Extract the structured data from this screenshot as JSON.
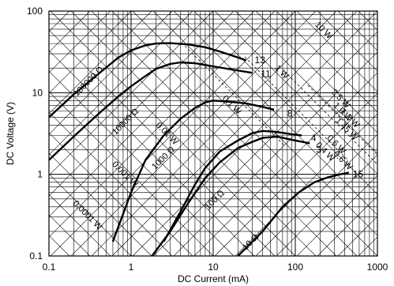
{
  "chart_data": {
    "type": "line",
    "x_scale": "log",
    "y_scale": "log",
    "xlim": [
      0.1,
      1000
    ],
    "ylim": [
      0.1,
      100
    ],
    "xlabel": "DC Current (mA)",
    "ylabel": "DC Voltage (V)",
    "x_ticks": [
      {
        "value": 0.1,
        "label": "0.1"
      },
      {
        "value": 1,
        "label": "1"
      },
      {
        "value": 10,
        "label": "10"
      },
      {
        "value": 100,
        "label": "100"
      },
      {
        "value": 1000,
        "label": "1000"
      }
    ],
    "y_ticks": [
      {
        "value": 0.1,
        "label": "0.1"
      },
      {
        "value": 1,
        "label": "1"
      },
      {
        "value": 10,
        "label": "10"
      },
      {
        "value": 100,
        "label": "100"
      }
    ],
    "grid": true,
    "series": [
      {
        "label": "13",
        "label_at": [
          32,
          25
        ],
        "points": [
          [
            0.1,
            5.0
          ],
          [
            0.2,
            9.5
          ],
          [
            0.4,
            17
          ],
          [
            0.7,
            27
          ],
          [
            1.0,
            33
          ],
          [
            1.5,
            38
          ],
          [
            2.0,
            40
          ],
          [
            3.0,
            40.5
          ],
          [
            5.0,
            39
          ],
          [
            8.0,
            36
          ],
          [
            12,
            32
          ],
          [
            18,
            28
          ],
          [
            25,
            25
          ]
        ]
      },
      {
        "label": "11",
        "label_at": [
          38,
          17
        ],
        "points": [
          [
            0.1,
            1.5
          ],
          [
            0.2,
            2.9
          ],
          [
            0.4,
            5.5
          ],
          [
            0.7,
            9
          ],
          [
            1.0,
            12
          ],
          [
            1.5,
            16
          ],
          [
            2.0,
            19.5
          ],
          [
            3.0,
            22.5
          ],
          [
            4.0,
            23.5
          ],
          [
            6.0,
            23
          ],
          [
            10,
            21
          ],
          [
            18,
            19
          ],
          [
            30,
            17.5
          ]
        ]
      },
      {
        "label": "8",
        "label_at": [
          80,
          5.6
        ],
        "points": [
          [
            0.6,
            0.15
          ],
          [
            1.0,
            0.6
          ],
          [
            1.5,
            1.5
          ],
          [
            2.5,
            3.0
          ],
          [
            4.0,
            4.8
          ],
          [
            6.0,
            6.5
          ],
          [
            8.0,
            7.6
          ],
          [
            10,
            8.0
          ],
          [
            15,
            7.8
          ],
          [
            25,
            7.4
          ],
          [
            40,
            6.7
          ],
          [
            55,
            6.2
          ]
        ]
      },
      {
        "label": "4",
        "label_at": [
          155,
          2.8
        ],
        "points": [
          [
            2.5,
            0.15
          ],
          [
            4.0,
            0.35
          ],
          [
            6.0,
            0.75
          ],
          [
            8.0,
            1.2
          ],
          [
            12,
            1.9
          ],
          [
            20,
            2.6
          ],
          [
            30,
            3.2
          ],
          [
            40,
            3.4
          ],
          [
            60,
            3.3
          ],
          [
            90,
            3.1
          ],
          [
            120,
            3.0
          ]
        ]
      },
      {
        "label": "3",
        "label_at": [
          180,
          2.0
        ],
        "points": [
          [
            1.8,
            0.1
          ],
          [
            3.0,
            0.2
          ],
          [
            5.0,
            0.45
          ],
          [
            8.0,
            0.9
          ],
          [
            12,
            1.4
          ],
          [
            20,
            2.1
          ],
          [
            30,
            2.5
          ],
          [
            40,
            2.8
          ],
          [
            60,
            2.9
          ],
          [
            100,
            2.6
          ],
          [
            150,
            2.4
          ]
        ]
      },
      {
        "label": "15",
        "label_at": [
          500,
          1.0
        ],
        "points": [
          [
            20,
            0.1
          ],
          [
            40,
            0.2
          ],
          [
            70,
            0.4
          ],
          [
            110,
            0.6
          ],
          [
            170,
            0.8
          ],
          [
            250,
            0.92
          ],
          [
            350,
            1.0
          ],
          [
            450,
            1.05
          ]
        ]
      }
    ],
    "annotations": [
      {
        "text": "100000 Ω",
        "x": 0.32,
        "y": 13,
        "angle": -45
      },
      {
        "text": "10000 Ω",
        "x": 0.9,
        "y": 4.2,
        "angle": -45
      },
      {
        "text": "1000 Ω",
        "x": 2.6,
        "y": 1.5,
        "angle": -45
      },
      {
        "text": "100 Ω",
        "x": 11,
        "y": 0.46,
        "angle": -45
      },
      {
        "text": "10 Ω",
        "x": 30,
        "y": 0.14,
        "angle": -45
      },
      {
        "text": "0.0001 W",
        "x": 0.28,
        "y": 0.3,
        "angle": 45
      },
      {
        "text": "0.001 W",
        "x": 0.8,
        "y": 0.95,
        "angle": 45
      },
      {
        "text": "0.01 W",
        "x": 2.6,
        "y": 3.0,
        "angle": 45
      },
      {
        "text": "0.1 W",
        "x": 16,
        "y": 6.7,
        "angle": 45
      },
      {
        "text": "1 W",
        "x": 65,
        "y": 17,
        "angle": 45
      },
      {
        "text": "10 W",
        "x": 210,
        "y": 55,
        "angle": 45
      },
      {
        "text": "2.5 W",
        "x": 340,
        "y": 8.0,
        "angle": 45
      },
      {
        "text": "1.9 W",
        "x": 360,
        "y": 5.5,
        "angle": 45
      },
      {
        "text": "1.2 W",
        "x": 440,
        "y": 4.6,
        "angle": 45
      },
      {
        "text": "1.45 W",
        "x": 400,
        "y": 3.4,
        "angle": 45
      },
      {
        "text": "0.6 W",
        "x": 300,
        "y": 2.2,
        "angle": 45
      },
      {
        "text": "0.4 W",
        "x": 220,
        "y": 1.8,
        "angle": 45
      },
      {
        "text": "0.6 W",
        "x": 360,
        "y": 1.4,
        "angle": 45
      }
    ]
  }
}
